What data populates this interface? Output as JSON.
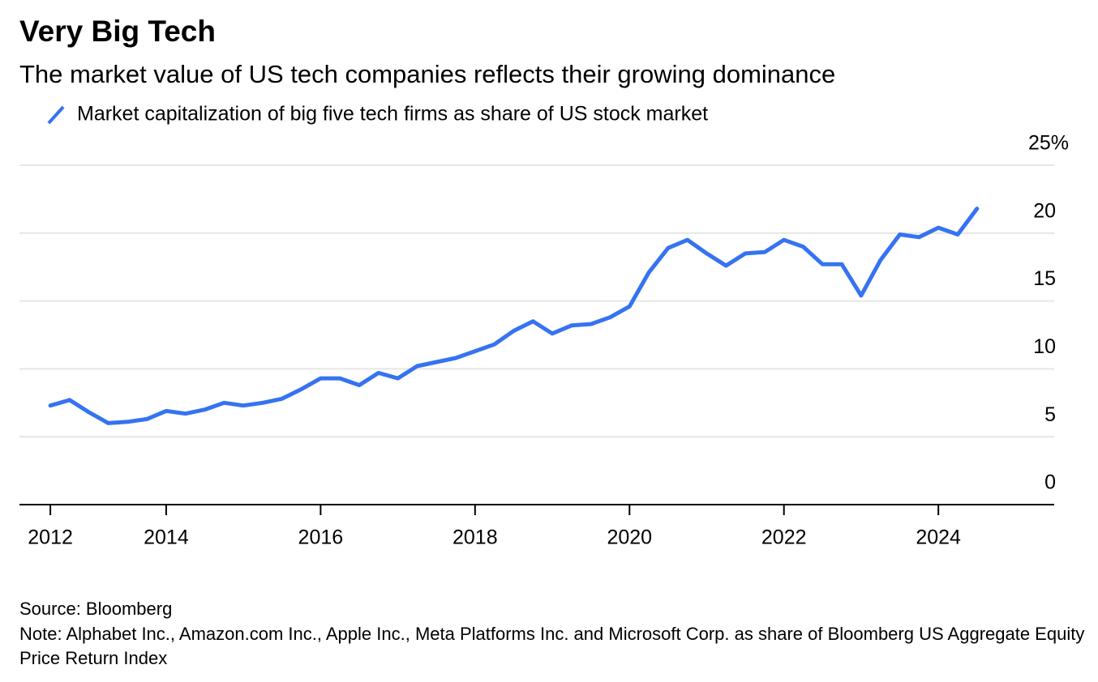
{
  "chart_data": {
    "type": "line",
    "title": "Very Big Tech",
    "subtitle": "The market value of US tech companies reflects their growing dominance",
    "x": [
      2012.5,
      2012.75,
      2013,
      2013.25,
      2013.5,
      2013.75,
      2014,
      2014.25,
      2014.5,
      2014.75,
      2015,
      2015.25,
      2015.5,
      2015.75,
      2016,
      2016.25,
      2016.5,
      2016.75,
      2017,
      2017.25,
      2017.5,
      2017.75,
      2018,
      2018.25,
      2018.5,
      2018.75,
      2019,
      2019.25,
      2019.5,
      2019.75,
      2020,
      2020.25,
      2020.5,
      2020.75,
      2021,
      2021.25,
      2021.5,
      2021.75,
      2022,
      2022.25,
      2022.5,
      2022.75,
      2023,
      2023.25,
      2023.5,
      2023.75,
      2024,
      2024.25,
      2024.5
    ],
    "series": [
      {
        "name": "Market capitalization of big five tech firms as share of US stock market",
        "color": "#3573f0",
        "values": [
          7.3,
          7.7,
          6.8,
          6.0,
          6.1,
          6.3,
          6.9,
          6.7,
          7.0,
          7.5,
          7.3,
          7.5,
          7.8,
          8.5,
          9.3,
          9.3,
          8.8,
          9.7,
          9.3,
          10.2,
          10.5,
          10.8,
          11.3,
          11.8,
          12.8,
          13.5,
          12.6,
          13.2,
          13.3,
          13.8,
          14.6,
          17.1,
          18.9,
          19.5,
          18.5,
          17.6,
          18.5,
          18.6,
          19.5,
          19.0,
          17.7,
          17.7,
          15.4,
          18.0,
          19.9,
          19.7,
          20.4,
          19.9,
          21.8
        ]
      }
    ],
    "xlim": [
      2012.1,
      2025.5
    ],
    "xticks": [
      {
        "value": 2012.5,
        "label": "2012"
      },
      2014,
      2016,
      2018,
      2020,
      2022,
      2024
    ],
    "ylim": [
      0,
      25
    ],
    "yticks": [
      0,
      5,
      10,
      15,
      20,
      {
        "value": 25,
        "label": "25%"
      }
    ],
    "grid": true,
    "source": "Source: Bloomberg",
    "note": "Note: Alphabet Inc., Amazon.com Inc., Apple Inc., Meta Platforms Inc. and Microsoft Corp. as share of Bloomberg US Aggregate Equity Price Return Index"
  }
}
